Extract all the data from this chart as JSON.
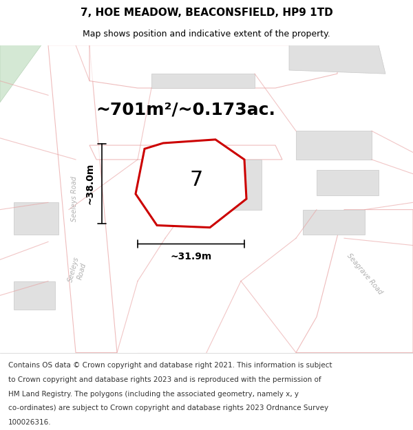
{
  "title": "7, HOE MEADOW, BEACONSFIELD, HP9 1TD",
  "subtitle": "Map shows position and indicative extent of the property.",
  "footer_lines": [
    "Contains OS data © Crown copyright and database right 2021. This information is subject",
    "to Crown copyright and database rights 2023 and is reproduced with the permission of",
    "HM Land Registry. The polygons (including the associated geometry, namely x, y",
    "co-ordinates) are subject to Crown copyright and database rights 2023 Ordnance Survey",
    "100026316."
  ],
  "area_label": "~701m²/~0.173ac.",
  "width_label": "~31.9m",
  "height_label": "~38.0m",
  "plot_number": "7",
  "map_bg": "#f0f0f0",
  "road_stroke": "#e8a0a0",
  "highlight_stroke": "#cc0000",
  "highlight_fill": "#ffffff",
  "title_fontsize": 11,
  "subtitle_fontsize": 9,
  "footer_fontsize": 7.5,
  "area_label_fontsize": 18,
  "dim_label_fontsize": 10,
  "plot_number_fontsize": 22
}
